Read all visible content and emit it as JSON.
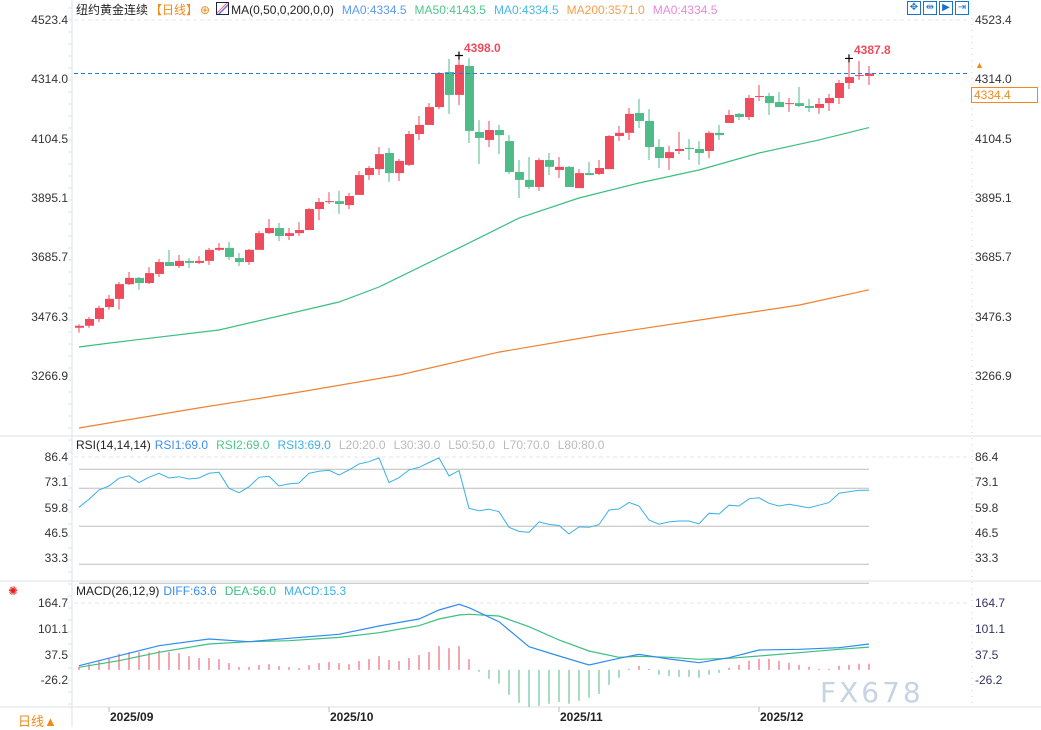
{
  "header": {
    "symbol": "纽约黄金连续",
    "period_tag": "【日线】",
    "ma_label": "MA(0,50,0,200,0,0)",
    "ma_values": [
      {
        "label": "MA0:4334.5",
        "color": "#5b9bf0"
      },
      {
        "label": "MA50:4143.5",
        "color": "#4cc98a"
      },
      {
        "label": "MA0:4334.5",
        "color": "#4ab8e8"
      },
      {
        "label": "MA200:3571.0",
        "color": "#f5a04a"
      },
      {
        "label": "MA0:4334.5",
        "color": "#e88ad8"
      }
    ],
    "toolbar_icons": [
      "crosshair-icon",
      "zoom-range-icon",
      "play-forward-icon",
      "exit-right-icon"
    ]
  },
  "rsi_legend": {
    "title": "RSI(14,14,14)",
    "values": [
      {
        "label": "RSI1:69.0",
        "color": "#3d8ef0"
      },
      {
        "label": "RSI2:69.0",
        "color": "#4cc98a"
      },
      {
        "label": "RSI3:69.0",
        "color": "#3ab0e8"
      },
      {
        "label": "L20:20.0",
        "color": "#bbbbbb"
      },
      {
        "label": "L30:30.0",
        "color": "#bbbbbb"
      },
      {
        "label": "L50:50.0",
        "color": "#bbbbbb"
      },
      {
        "label": "L70:70.0",
        "color": "#bbbbbb"
      },
      {
        "label": "L80:80.0",
        "color": "#bbbbbb"
      }
    ]
  },
  "macd_legend": {
    "title": "MACD(26,12,9)",
    "values": [
      {
        "label": "DIFF:63.6",
        "color": "#2f8cf0"
      },
      {
        "label": "DEA:56.0",
        "color": "#3cbf7f"
      },
      {
        "label": "MACD:15.3",
        "color": "#3ab0e8"
      }
    ]
  },
  "last_price_label": "4334.4",
  "period_button": "日线▲",
  "watermark": "FX678",
  "colors": {
    "up": "#ee4b5c",
    "down": "#4fbb88",
    "ma50": "#3cbf7f",
    "ma200": "#f08030",
    "rsi": "#3ab0e8",
    "diff": "#2f8cf0",
    "dea": "#3cbf7f",
    "last_price_line": "#1e7bd8",
    "accent": "#f08a1c"
  },
  "chart_data": [
    {
      "type": "candlestick",
      "yticks": [
        "4523.4",
        "4314.0",
        "4104.5",
        "3895.1",
        "3685.7",
        "3476.3",
        "3266.9"
      ],
      "ylim": [
        3150,
        4523.4
      ],
      "x_labels": [
        {
          "index": 3,
          "label": "2025/09"
        },
        {
          "index": 25,
          "label": "2025/10"
        },
        {
          "index": 48,
          "label": "2025/11"
        },
        {
          "index": 68,
          "label": "2025/12"
        }
      ],
      "last_price": 4334.4,
      "annotations": [
        {
          "index": 38,
          "value": 4398.0,
          "label": "4398.0"
        },
        {
          "index": 77,
          "value": 4387.8,
          "label": "4387.8"
        }
      ],
      "ohlc": [
        [
          3437,
          3449,
          3420,
          3444
        ],
        [
          3444,
          3475,
          3437,
          3468
        ],
        [
          3468,
          3515,
          3457,
          3507
        ],
        [
          3510,
          3553,
          3501,
          3539
        ],
        [
          3539,
          3599,
          3501,
          3591
        ],
        [
          3591,
          3634,
          3588,
          3613
        ],
        [
          3613,
          3616,
          3571,
          3595
        ],
        [
          3595,
          3651,
          3591,
          3630
        ],
        [
          3627,
          3680,
          3616,
          3669
        ],
        [
          3669,
          3712,
          3655,
          3655
        ],
        [
          3655,
          3694,
          3648,
          3673
        ],
        [
          3673,
          3683,
          3648,
          3666
        ],
        [
          3666,
          3690,
          3662,
          3673
        ],
        [
          3673,
          3719,
          3659,
          3712
        ],
        [
          3712,
          3736,
          3708,
          3719
        ],
        [
          3719,
          3740,
          3676,
          3687
        ],
        [
          3683,
          3701,
          3655,
          3669
        ],
        [
          3669,
          3715,
          3659,
          3712
        ],
        [
          3712,
          3779,
          3712,
          3771
        ],
        [
          3771,
          3821,
          3768,
          3789
        ],
        [
          3789,
          3807,
          3743,
          3761
        ],
        [
          3761,
          3789,
          3747,
          3771
        ],
        [
          3771,
          3810,
          3761,
          3782
        ],
        [
          3782,
          3860,
          3782,
          3856
        ],
        [
          3856,
          3895,
          3817,
          3881
        ],
        [
          3881,
          3916,
          3874,
          3884
        ],
        [
          3884,
          3920,
          3839,
          3874
        ],
        [
          3870,
          3913,
          3856,
          3902
        ],
        [
          3906,
          3990,
          3906,
          3976
        ],
        [
          3976,
          4008,
          3959,
          4001
        ],
        [
          3997,
          4075,
          3976,
          4050
        ],
        [
          4054,
          4072,
          3952,
          3983
        ],
        [
          3983,
          4033,
          3955,
          4026
        ],
        [
          4012,
          4132,
          4008,
          4121
        ],
        [
          4121,
          4185,
          4100,
          4153
        ],
        [
          4153,
          4230,
          4153,
          4216
        ],
        [
          4216,
          4340,
          4209,
          4336
        ],
        [
          4340,
          4386,
          4192,
          4259
        ],
        [
          4259,
          4398,
          4223,
          4365
        ],
        [
          4361,
          4389,
          4089,
          4132
        ],
        [
          4128,
          4170,
          4015,
          4107
        ],
        [
          4100,
          4167,
          4075,
          4135
        ],
        [
          4135,
          4153,
          4050,
          4117
        ],
        [
          4096,
          4117,
          3980,
          3987
        ],
        [
          3987,
          4029,
          3895,
          3959
        ],
        [
          3959,
          4040,
          3927,
          3934
        ],
        [
          3934,
          4036,
          3920,
          4029
        ],
        [
          4029,
          4054,
          3976,
          4005
        ],
        [
          3994,
          4040,
          3966,
          4005
        ],
        [
          4005,
          4008,
          3934,
          3934
        ],
        [
          3930,
          3997,
          3930,
          3983
        ],
        [
          3983,
          4022,
          3976,
          3976
        ],
        [
          3980,
          4029,
          3976,
          4001
        ],
        [
          3997,
          4117,
          3997,
          4114
        ],
        [
          4114,
          4149,
          4096,
          4125
        ],
        [
          4125,
          4213,
          4100,
          4192
        ],
        [
          4195,
          4245,
          4142,
          4167
        ],
        [
          4167,
          4209,
          4029,
          4075
        ],
        [
          4075,
          4103,
          4001,
          4036
        ],
        [
          4036,
          4079,
          3994,
          4057
        ],
        [
          4061,
          4128,
          4050,
          4068
        ],
        [
          4072,
          4103,
          4029,
          4068
        ],
        [
          4068,
          4096,
          4012,
          4054
        ],
        [
          4061,
          4132,
          4036,
          4125
        ],
        [
          4125,
          4153,
          4100,
          4117
        ],
        [
          4160,
          4206,
          4160,
          4188
        ],
        [
          4192,
          4195,
          4170,
          4181
        ],
        [
          4181,
          4259,
          4170,
          4248
        ],
        [
          4252,
          4294,
          4237,
          4255
        ],
        [
          4255,
          4266,
          4188,
          4230
        ],
        [
          4234,
          4269,
          4216,
          4216
        ],
        [
          4227,
          4248,
          4199,
          4230
        ],
        [
          4230,
          4287,
          4216,
          4220
        ],
        [
          4220,
          4245,
          4199,
          4213
        ],
        [
          4213,
          4248,
          4192,
          4227
        ],
        [
          4230,
          4262,
          4202,
          4248
        ],
        [
          4248,
          4312,
          4227,
          4301
        ],
        [
          4301,
          4387.8,
          4280,
          4322
        ],
        [
          4326,
          4379,
          4312,
          4329
        ],
        [
          4326,
          4361,
          4294,
          4334.5
        ]
      ],
      "ma50": [
        [
          0,
          3369
        ],
        [
          3,
          3383
        ],
        [
          14,
          3429
        ],
        [
          26,
          3528
        ],
        [
          30,
          3581
        ],
        [
          38,
          3719
        ],
        [
          44,
          3824
        ],
        [
          50,
          3895
        ],
        [
          56,
          3948
        ],
        [
          62,
          3994
        ],
        [
          68,
          4054
        ],
        [
          74,
          4100
        ],
        [
          79,
          4143.5
        ]
      ],
      "ma200": [
        [
          0,
          3083
        ],
        [
          12,
          3154
        ],
        [
          22,
          3210
        ],
        [
          32,
          3270
        ],
        [
          42,
          3351
        ],
        [
          52,
          3411
        ],
        [
          62,
          3464
        ],
        [
          72,
          3517
        ],
        [
          79,
          3571.0
        ]
      ]
    },
    {
      "type": "line",
      "title": "RSI(14,14,14)",
      "yticks": [
        "86.4",
        "73.1",
        "59.8",
        "46.5",
        "33.3"
      ],
      "levels": [
        80,
        70,
        50,
        30,
        20
      ],
      "rsi": [
        60.0,
        64.2,
        69.1,
        71.2,
        75.3,
        76.5,
        73.0,
        75.8,
        77.9,
        75.4,
        76.1,
        74.9,
        75.4,
        77.9,
        78.4,
        70.0,
        67.7,
        70.8,
        75.8,
        76.3,
        71.2,
        72.3,
        72.8,
        77.9,
        79.0,
        79.5,
        77.0,
        79.7,
        82.8,
        84.0,
        86.0,
        73.0,
        75.6,
        79.7,
        81.0,
        83.6,
        86.0,
        76.5,
        79.3,
        59.5,
        58.2,
        59.0,
        57.7,
        49.5,
        47.3,
        46.8,
        52.3,
        51.0,
        50.4,
        46.0,
        49.7,
        49.5,
        50.9,
        58.6,
        59.1,
        62.6,
        60.7,
        53.3,
        51.1,
        52.3,
        52.8,
        52.8,
        51.3,
        56.9,
        56.5,
        61.1,
        60.7,
        64.5,
        65.0,
        62.1,
        60.7,
        61.6,
        60.7,
        59.7,
        61.1,
        62.5,
        67.4,
        68.2,
        69.0,
        69.0
      ]
    },
    {
      "type": "bar+line",
      "title": "MACD(26,12,9)",
      "yticks": [
        "164.7",
        "101.1",
        "37.5",
        "-26.2"
      ],
      "macd": [
        6.6,
        14,
        20.5,
        28.8,
        39.5,
        43.6,
        43.6,
        42.7,
        47.7,
        43.6,
        41.1,
        33.7,
        28.8,
        28.8,
        26.3,
        16.4,
        6.6,
        6.6,
        11.5,
        14,
        9,
        6.6,
        4.1,
        11.5,
        16.4,
        18.9,
        16.4,
        14,
        21.4,
        26.3,
        33.7,
        23.8,
        21.4,
        28.8,
        36.2,
        43.6,
        58.4,
        53.4,
        58.4,
        26.3,
        -4.9,
        -22.2,
        -34.5,
        -61.7,
        -81.4,
        -91.2,
        -88.8,
        -83.8,
        -78.9,
        -83.8,
        -76.4,
        -69,
        -59.2,
        -37,
        -19.7,
        2.5,
        9.9,
        2.5,
        -12.3,
        -14.8,
        -17.3,
        -17.3,
        -19.7,
        -12.3,
        -7.4,
        5,
        12.3,
        22.2,
        27.1,
        27.1,
        22.2,
        17.3,
        12.3,
        7.4,
        2.5,
        2.5,
        9.9,
        12.3,
        14.8,
        15.3
      ],
      "diff": [
        [
          0,
          10.2
        ],
        [
          4,
          34.8
        ],
        [
          8,
          59.5
        ],
        [
          13,
          76
        ],
        [
          17,
          69.3
        ],
        [
          21,
          77.6
        ],
        [
          26,
          87.5
        ],
        [
          30,
          108
        ],
        [
          34,
          125.3
        ],
        [
          36,
          147.5
        ],
        [
          38,
          161.5
        ],
        [
          39,
          153
        ],
        [
          42,
          118.6
        ],
        [
          45,
          57
        ],
        [
          48,
          34
        ],
        [
          51,
          11.9
        ],
        [
          54,
          28.4
        ],
        [
          56,
          38.2
        ],
        [
          59,
          26.7
        ],
        [
          62,
          17.6
        ],
        [
          65,
          29.9
        ],
        [
          68,
          48.8
        ],
        [
          72,
          50.5
        ],
        [
          76,
          54.5
        ],
        [
          79,
          63.6
        ]
      ],
      "dea": [
        [
          0,
          6.2
        ],
        [
          4,
          22.5
        ],
        [
          8,
          43.1
        ],
        [
          13,
          63.6
        ],
        [
          17,
          69.3
        ],
        [
          21,
          71.8
        ],
        [
          26,
          80
        ],
        [
          30,
          91.5
        ],
        [
          34,
          108.8
        ],
        [
          36,
          125.3
        ],
        [
          38,
          135.1
        ],
        [
          39,
          136.8
        ],
        [
          42,
          132.7
        ],
        [
          45,
          106.3
        ],
        [
          48,
          73.5
        ],
        [
          51,
          46.4
        ],
        [
          54,
          30.8
        ],
        [
          56,
          33.3
        ],
        [
          59,
          30.8
        ],
        [
          62,
          25.9
        ],
        [
          65,
          28.4
        ],
        [
          68,
          34
        ],
        [
          72,
          42.2
        ],
        [
          76,
          50.5
        ],
        [
          79,
          56.0
        ]
      ]
    }
  ]
}
